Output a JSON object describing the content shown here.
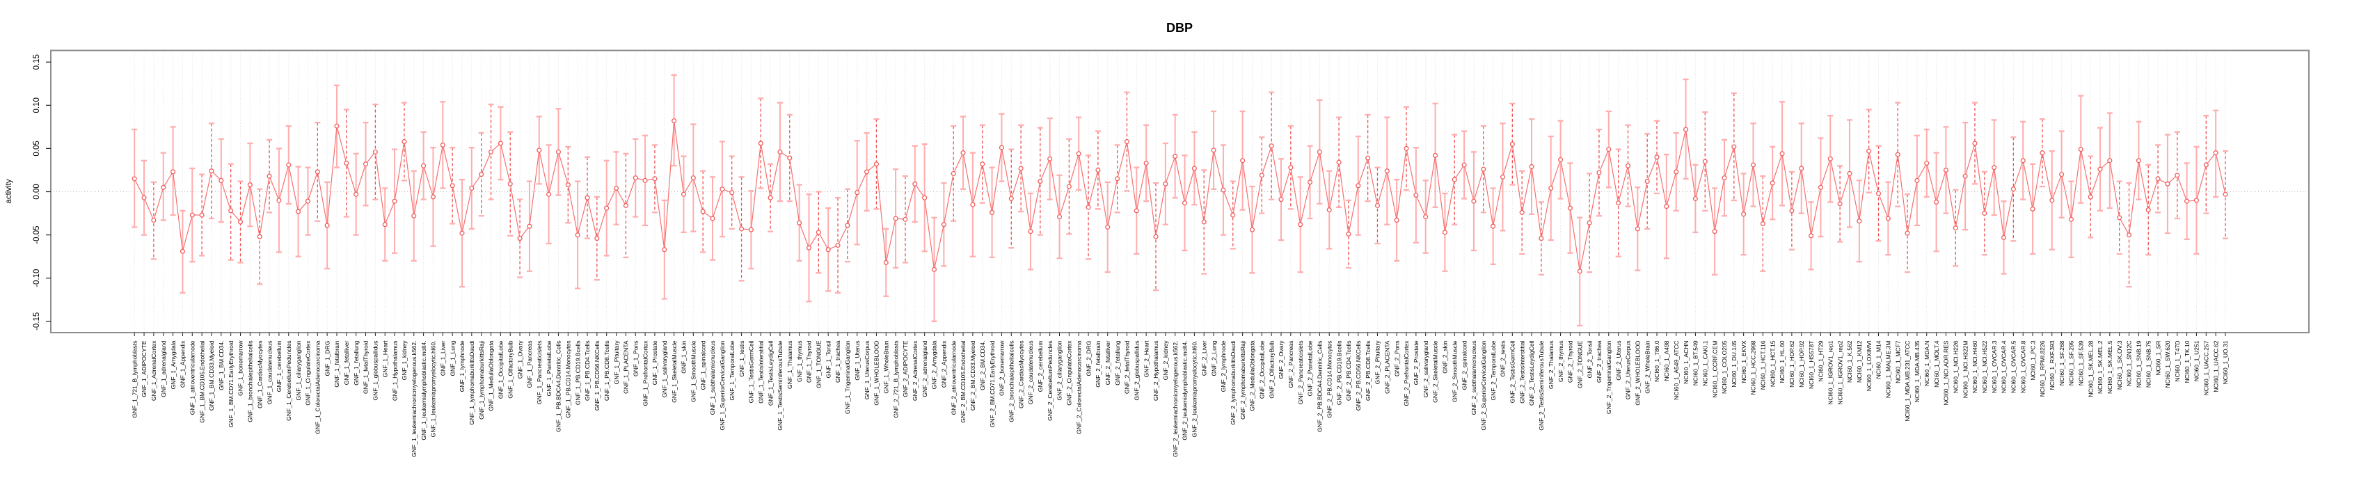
{
  "chart_data": {
    "type": "line",
    "title": "DBP",
    "ylabel": "activity",
    "xlabel": "",
    "ylim": [
      -0.15,
      0.15
    ],
    "yticks": [
      -0.15,
      -0.1,
      -0.05,
      0.0,
      0.05,
      0.1,
      0.15
    ],
    "ytick_labels": [
      "-0.15",
      "-0.10",
      "-0.05",
      "0.00",
      "0.05",
      "0.10",
      "0.15"
    ],
    "legend": "none",
    "grid": "vertical dotted line per category, dotted horizontal line at 0",
    "marker": "open circles connected by line, with confidence-interval error bars",
    "colors": {
      "series_line": "#f57070",
      "point": "#f25c5c",
      "ci_bar_light": "#ffadad",
      "ci_bar_dashed": "#f04f4f",
      "grid_line": "#dedede",
      "zero_line": "#bbbbbb",
      "box_border": "#8c8c8c",
      "tick": "#222222"
    },
    "categories": [
      "GNF_1_721_B_lymphoblasts",
      "GNF_1_ADIPOCYTE",
      "GNF_1_AdrenalCortex",
      "GNF_1_adrenalgland",
      "GNF_1_Amygdala",
      "GNF_1_Appendix",
      "GNF_1_atrioventricularnode",
      "GNF_1_BM.CD105.Endothelial",
      "GNF_1_BM.CD33.Myeloid",
      "GNF_1_BM.CD34.",
      "GNF_1_BM.CD71.EarlyErythroid",
      "GNF_1_bonemarrow",
      "GNF_1_bronchialepithelialcells",
      "GNF_1_CardiacMyocytes",
      "GNF_1_caudatenucleus",
      "GNF_1_cerebellum",
      "GNF_1_CerebellumPeduncles",
      "GNF_1_ciliaryganglion",
      "GNF_1_CingulateCortex",
      "GNF_1_ColorectalAdenocarcinoma",
      "GNF_1_DRG",
      "GNF_1_fetalbrain",
      "GNF_1_fetalliver",
      "GNF_1_fetallung",
      "GNF_1_fetalThyroid",
      "GNF_1_globuspallidus",
      "GNF_1_Heart",
      "GNF_1_Hypothalamus",
      "GNF_1_kidney",
      "GNF_1_leukemiachronicmyelogenous.k562.",
      "GNF_1_leukemialymphoblastic.molt4.",
      "GNF_1_leukemiapromyelocytic.hl60.",
      "GNF_1_Liver",
      "GNF_1_Lung",
      "GNF_1_lymphnode",
      "GNF_1_lymphomaburkittsDaudi",
      "GNF_1_lymphomaburkittsRaji",
      "GNF_1_MedullaOblongata",
      "GNF_1_OccipitalLobe",
      "GNF_1_OlfactoryBulb",
      "GNF_1_Ovary",
      "GNF_1_Pancreas",
      "GNF_1_Pancreaticislets",
      "GNF_1_ParietalLobe",
      "GNF_1_PB.BDCA4.Dentritic_Cells",
      "GNF_1_PB.CD14.Monocytes",
      "GNF_1_PB.CD19.Bcells",
      "GNF_1_PB.CD4.Tcells",
      "GNF_1_PB.CD56.NKCells",
      "GNF_1_PB.CD8.Tcells",
      "GNF_1_Pituitary",
      "GNF_1_PLACENTA",
      "GNF_1_Pons",
      "GNF_1_PrefrontalCortex",
      "GNF_1_Prostate",
      "GNF_1_salivarygland",
      "GNF_1_SkeletalMuscle",
      "GNF_1_skin",
      "GNF_1_SmoothMuscle",
      "GNF_1_spinalcord",
      "GNF_1_subthalamicnucleus",
      "GNF_1_SuperiorCervicalGanglion",
      "GNF_1_TemporalLobe",
      "GNF_1_testis",
      "GNF_1_TestisGermCell",
      "GNF_1_TestisInterstitial",
      "GNF_1_TestisLeydigCell",
      "GNF_1_TestisSeminiferousTubule",
      "GNF_1_Thalamus",
      "GNF_1_thymus",
      "GNF_1_Thyroid",
      "GNF_1_TONGUE",
      "GNF_1_Tonsil",
      "GNF_1_trachea",
      "GNF_1_TrigeminalGanglion",
      "GNF_1_Uterus",
      "GNF_1_UterusCorpus",
      "GNF_1_WHOLEBLOOD",
      "GNF_1_WholeBrain",
      "GNF_2_721_B_lymphoblasts",
      "GNF_2_ADIPOCYTE",
      "GNF_2_AdrenalCortex",
      "GNF_2_adrenalgland",
      "GNF_2_Amygdala",
      "GNF_2_Appendix",
      "GNF_2_atrioventricularnode",
      "GNF_2_BM.CD105.Endothelial",
      "GNF_2_BM.CD33.Myeloid",
      "GNF_2_BM.CD34.",
      "GNF_2_BM.CD71.EarlyErythroid",
      "GNF_2_bonemarrow",
      "GNF_2_bronchialepithelialcells",
      "GNF_2_CardiacMyocytes",
      "GNF_2_caudatenucleus",
      "GNF_2_cerebellum",
      "GNF_2_CerebellumPeduncles",
      "GNF_2_ciliaryganglion",
      "GNF_2_CingulateCortex",
      "GNF_2_ColorectalAdenocarcinoma",
      "GNF_2_DRG",
      "GNF_2_fetalbrain",
      "GNF_2_fetalliver",
      "GNF_2_fetallung",
      "GNF_2_fetalThyroid",
      "GNF_2_globuspallidus",
      "GNF_2_Heart",
      "GNF_2_Hypothalamus",
      "GNF_2_kidney",
      "GNF_2_leukemiachronicmyelogenous.k562.",
      "GNF_2_leukemialymphoblastic.molt4.",
      "GNF_2_leukemiapromyelocytic.hl60.",
      "GNF_2_Liver",
      "GNF_2_Lung",
      "GNF_2_lymphnode",
      "GNF_2_lymphomaburkittsDaudi",
      "GNF_2_lymphomaburkittsRaji",
      "GNF_2_MedullaOblongata",
      "GNF_2_OccipitalLobe",
      "GNF_2_OlfactoryBulb",
      "GNF_2_Ovary",
      "GNF_2_Pancreas",
      "GNF_2_Pancreaticislets",
      "GNF_2_ParietalLobe",
      "GNF_2_PB.BDCA4.Dentritic_Cells",
      "GNF_2_PB.CD14.Monocytes",
      "GNF_2_PB.CD19.Bcells",
      "GNF_2_PB.CD4.Tcells",
      "GNF_2_PB.CD56.NKCells",
      "GNF_2_PB.CD8.Tcells",
      "GNF_2_Pituitary",
      "GNF_2_PLACENTA",
      "GNF_2_Pons",
      "GNF_2_PrefrontalCortex",
      "GNF_2_Prostate",
      "GNF_2_salivarygland",
      "GNF_2_SkeletalMuscle",
      "GNF_2_skin",
      "GNF_2_SmoothMuscle",
      "GNF_2_spinalcord",
      "GNF_2_subthalamicnucleus",
      "GNF_2_SuperiorCervicalGanglion",
      "GNF_2_TemporalLobe",
      "GNF_2_testis",
      "GNF_2_TestisGermCell",
      "GNF_2_TestisInterstitial",
      "GNF_2_TestisLeydigCell",
      "GNF_2_TestisSeminiferousTubule",
      "GNF_2_Thalamus",
      "GNF_2_thymus",
      "GNF_2_Thyroid",
      "GNF_2_TONGUE",
      "GNF_2_Tonsil",
      "GNF_2_trachea",
      "GNF_2_TrigeminalGanglion",
      "GNF_2_Uterus",
      "GNF_2_UterusCorpus",
      "GNF_2_WHOLEBLOOD",
      "GNF_2_WholeBrain",
      "NCI60_1_786.0",
      "NCI60_1_A498",
      "NCI60_1_A549_ATCC",
      "NCI60_1_ACHN",
      "NCI60_1_BT.549",
      "NCI60_1_CAKI.1",
      "NCI60_1_CCRF.CEM",
      "NCI60_1_COLO205",
      "NCI60_1_DU.145",
      "NCI60_1_EKVX",
      "NCI60_1_HCC.2998",
      "NCI60_1_HCT.116",
      "NCI60_1_HCT.15",
      "NCI60_1_HL.60",
      "NCI60_1_HOP.62",
      "NCI60_1_HOP.92",
      "NCI60_1_HS578T",
      "NCI60_1_HT29",
      "NCI60_1_IGROV1_rep1",
      "NCI60_1_IGROV1_rep2",
      "NCI60_1_K.562",
      "NCI60_1_KM12",
      "NCI60_1_LOXIMVI",
      "NCI60_1_M14",
      "NCI60_1_MALME.3M",
      "NCI60_1_MCF7",
      "NCI60_1_MDA.MB.231_ATCC",
      "NCI60_1_MDA.MB.435",
      "NCI60_1_MDA.N",
      "NCI60_1_MOLT.4",
      "NCI60_1_NCI.ADR.RES",
      "NCI60_1_NCI.H226",
      "NCI60_1_NCI.H322M",
      "NCI60_1_NCI.H460",
      "NCI60_1_NCI.H522",
      "NCI60_1_OVCAR.3",
      "NCI60_1_OVCAR.4",
      "NCI60_1_OVCAR.5",
      "NCI60_1_OVCAR.8",
      "NCI60_1_PC.3",
      "NCI60_1_RPMI.8226",
      "NCI60_1_RXF.393",
      "NCI60_1_SF.268",
      "NCI60_1_SF.295",
      "NCI60_1_SF.539",
      "NCI60_1_SK.MEL.28",
      "NCI60_1_SK.MEL.2",
      "NCI60_1_SK.MEL.5",
      "NCI60_1_SK.OV.3",
      "NCI60_1_SN12C",
      "NCI60_1_SNB.19",
      "NCI60_1_SNB.75",
      "NCI60_1_SR",
      "NCI60_1_SW.620",
      "NCI60_1_T47D",
      "NCI60_1_TK.10",
      "NCI60_1_U251",
      "NCI60_1_UACC.257",
      "NCI60_1_UACC.62",
      "NCI60_1_UO.31"
    ],
    "series": [
      {
        "name": "activity",
        "mean": [
          0.015,
          -0.007,
          -0.033,
          0.005,
          0.023,
          -0.069,
          -0.027,
          -0.027,
          0.024,
          0.013,
          -0.022,
          -0.035,
          0.008,
          -0.052,
          0.018,
          -0.01,
          0.031,
          -0.023,
          -0.011,
          0.023,
          -0.039,
          0.076,
          0.033,
          -0.003,
          0.032,
          0.046,
          -0.038,
          -0.011,
          0.058,
          -0.028,
          0.03,
          -0.006,
          0.054,
          0.007,
          -0.048,
          0.004,
          0.02,
          0.046,
          0.056,
          0.009,
          -0.054,
          -0.04,
          0.048,
          -0.003,
          0.046,
          0.008,
          -0.05,
          -0.007,
          -0.054,
          -0.019,
          0.004,
          -0.016,
          0.016,
          0.013,
          0.015,
          -0.067,
          0.082,
          -0.003,
          0.016,
          -0.023,
          -0.031,
          0.003,
          -0.001,
          -0.043,
          -0.044,
          0.056,
          -0.007,
          0.046,
          0.039,
          -0.036,
          -0.065,
          -0.047,
          -0.067,
          -0.062,
          -0.039,
          -0.001,
          0.023,
          0.032,
          -0.082,
          -0.031,
          -0.032,
          0.009,
          -0.007,
          -0.09,
          -0.038,
          0.021,
          0.045,
          -0.015,
          0.032,
          -0.024,
          0.051,
          -0.008,
          0.027,
          -0.046,
          0.012,
          0.038,
          -0.029,
          0.006,
          0.044,
          -0.018,
          0.025,
          -0.041,
          0.015,
          0.058,
          -0.022,
          0.033,
          -0.052,
          0.009,
          0.041,
          -0.013,
          0.027,
          -0.035,
          0.048,
          0.002,
          -0.027,
          0.036,
          -0.044,
          0.019,
          0.053,
          -0.009,
          0.028,
          -0.038,
          0.011,
          0.046,
          -0.021,
          0.034,
          -0.049,
          0.007,
          0.039,
          -0.016,
          0.024,
          -0.033,
          0.05,
          -0.004,
          -0.029,
          0.042,
          -0.047,
          0.014,
          0.031,
          -0.011,
          0.026,
          -0.04,
          0.017,
          0.055,
          -0.024,
          0.029,
          -0.054,
          0.004,
          0.037,
          -0.019,
          -0.092,
          -0.036,
          0.022,
          0.049,
          -0.013,
          0.03,
          -0.043,
          0.012,
          0.04,
          -0.017,
          0.023,
          0.072,
          -0.008,
          0.035,
          -0.046,
          0.016,
          0.052,
          -0.026,
          0.031,
          -0.037,
          0.01,
          0.044,
          -0.022,
          0.027,
          -0.051,
          0.005,
          0.038,
          -0.014,
          0.021,
          -0.034,
          0.047,
          -0.002,
          -0.031,
          0.043,
          -0.048,
          0.013,
          0.033,
          -0.012,
          0.025,
          -0.042,
          0.018,
          0.056,
          -0.025,
          0.028,
          -0.053,
          0.003,
          0.036,
          -0.02,
          0.045,
          -0.01,
          0.02,
          -0.032,
          0.049,
          -0.006,
          0.026,
          0.036,
          -0.03,
          -0.05,
          0.036,
          -0.021,
          0.015,
          0.009,
          0.019,
          -0.011,
          -0.01,
          0.031,
          0.045,
          -0.003
        ],
        "ci_low": [
          -0.041,
          -0.05,
          -0.078,
          -0.033,
          -0.027,
          -0.117,
          -0.081,
          -0.074,
          -0.031,
          -0.035,
          -0.079,
          -0.082,
          -0.04,
          -0.107,
          -0.024,
          -0.07,
          -0.014,
          -0.075,
          -0.05,
          -0.034,
          -0.089,
          0.028,
          -0.029,
          -0.05,
          -0.016,
          -0.009,
          -0.08,
          -0.071,
          0.013,
          -0.08,
          -0.009,
          -0.063,
          0.004,
          -0.037,
          -0.11,
          -0.043,
          -0.028,
          -0.009,
          0.014,
          -0.051,
          -0.099,
          -0.092,
          0.009,
          -0.06,
          -0.004,
          -0.036,
          -0.112,
          -0.054,
          -0.102,
          -0.074,
          -0.038,
          -0.076,
          -0.029,
          -0.039,
          -0.024,
          -0.124,
          0.03,
          -0.047,
          -0.046,
          -0.07,
          -0.079,
          -0.052,
          -0.043,
          -0.103,
          -0.089,
          0.004,
          -0.046,
          -0.011,
          -0.011,
          -0.08,
          -0.127,
          -0.094,
          -0.115,
          -0.117,
          -0.081,
          -0.061,
          -0.022,
          -0.02,
          -0.121,
          -0.088,
          -0.082,
          -0.035,
          -0.069,
          -0.15,
          -0.086,
          -0.034,
          0.003,
          -0.075,
          -0.013,
          -0.076,
          0.012,
          -0.065,
          -0.023,
          -0.09,
          -0.05,
          -0.009,
          -0.077,
          -0.049,
          0.002,
          -0.078,
          -0.02,
          -0.093,
          -0.024,
          0.001,
          -0.072,
          -0.011,
          -0.114,
          -0.038,
          -0.007,
          -0.068,
          -0.015,
          -0.095,
          0.003,
          -0.05,
          -0.066,
          -0.021,
          -0.094,
          -0.025,
          -0.009,
          -0.056,
          -0.02,
          -0.093,
          -0.031,
          -0.014,
          -0.066,
          -0.018,
          -0.088,
          -0.05,
          -0.011,
          -0.06,
          -0.038,
          -0.08,
          0.002,
          -0.059,
          -0.071,
          -0.018,
          -0.092,
          -0.038,
          -0.008,
          -0.068,
          -0.024,
          -0.084,
          -0.045,
          0.008,
          -0.072,
          -0.026,
          -0.096,
          -0.056,
          -0.008,
          -0.071,
          -0.155,
          -0.093,
          -0.028,
          0.005,
          -0.075,
          -0.017,
          -0.091,
          -0.043,
          -0.002,
          -0.077,
          -0.022,
          0.015,
          -0.047,
          -0.022,
          -0.096,
          -0.028,
          -0.01,
          -0.073,
          -0.017,
          -0.092,
          -0.032,
          -0.016,
          -0.067,
          -0.025,
          -0.09,
          -0.052,
          -0.012,
          -0.058,
          -0.041,
          -0.081,
          -0.001,
          -0.057,
          -0.073,
          -0.017,
          -0.093,
          -0.039,
          -0.006,
          -0.069,
          -0.025,
          -0.086,
          -0.044,
          0.009,
          -0.073,
          -0.027,
          -0.095,
          -0.057,
          -0.009,
          -0.072,
          0.006,
          -0.067,
          -0.03,
          -0.076,
          -0.013,
          -0.053,
          -0.022,
          -0.019,
          -0.072,
          -0.11,
          -0.009,
          -0.073,
          -0.024,
          -0.048,
          -0.031,
          -0.055,
          -0.072,
          -0.025,
          -0.006,
          -0.054
        ],
        "ci_high": [
          0.072,
          0.036,
          0.011,
          0.045,
          0.075,
          -0.022,
          0.027,
          0.02,
          0.079,
          0.061,
          0.032,
          0.012,
          0.056,
          0.003,
          0.06,
          0.05,
          0.076,
          0.029,
          0.028,
          0.08,
          0.011,
          0.123,
          0.095,
          0.044,
          0.08,
          0.101,
          0.004,
          0.049,
          0.103,
          0.024,
          0.069,
          0.051,
          0.104,
          0.051,
          0.014,
          0.051,
          0.068,
          0.101,
          0.098,
          0.069,
          -0.009,
          0.012,
          0.087,
          0.054,
          0.096,
          0.052,
          0.012,
          0.04,
          -0.006,
          0.036,
          0.046,
          0.044,
          0.061,
          0.065,
          0.054,
          -0.01,
          0.135,
          0.041,
          0.078,
          0.024,
          0.017,
          0.058,
          0.041,
          0.017,
          0.001,
          0.108,
          0.032,
          0.103,
          0.089,
          0.008,
          -0.003,
          0.0,
          -0.019,
          -0.007,
          0.003,
          0.059,
          0.068,
          0.084,
          -0.043,
          0.026,
          0.018,
          0.053,
          0.055,
          -0.03,
          0.01,
          0.076,
          0.087,
          0.045,
          0.077,
          0.028,
          0.09,
          0.049,
          0.077,
          -0.002,
          0.074,
          0.085,
          0.019,
          0.061,
          0.086,
          0.042,
          0.07,
          0.011,
          0.054,
          0.115,
          0.028,
          0.077,
          0.01,
          0.056,
          0.089,
          0.042,
          0.069,
          0.025,
          0.093,
          0.054,
          0.012,
          0.093,
          0.006,
          0.063,
          0.115,
          0.038,
          0.076,
          0.017,
          0.053,
          0.106,
          0.024,
          0.086,
          -0.01,
          0.064,
          0.089,
          0.028,
          0.086,
          0.014,
          0.098,
          0.051,
          0.013,
          0.102,
          -0.002,
          0.066,
          0.07,
          0.046,
          0.076,
          0.004,
          0.079,
          0.102,
          0.024,
          0.084,
          -0.012,
          0.064,
          0.082,
          0.033,
          -0.03,
          0.021,
          0.072,
          0.093,
          0.049,
          0.077,
          0.005,
          0.067,
          0.082,
          0.043,
          0.068,
          0.13,
          0.031,
          0.092,
          0.004,
          0.06,
          0.114,
          0.021,
          0.079,
          0.018,
          0.052,
          0.104,
          0.023,
          0.079,
          -0.012,
          0.062,
          0.088,
          0.03,
          0.083,
          0.013,
          0.095,
          0.053,
          0.011,
          0.103,
          -0.003,
          0.065,
          0.072,
          0.045,
          0.075,
          0.002,
          0.08,
          0.103,
          0.023,
          0.083,
          -0.011,
          0.063,
          0.081,
          0.032,
          0.084,
          0.047,
          0.07,
          0.012,
          0.111,
          0.041,
          0.074,
          0.091,
          0.012,
          0.01,
          0.081,
          0.031,
          0.054,
          0.066,
          0.069,
          0.033,
          0.052,
          0.088,
          0.094,
          0.047
        ]
      }
    ]
  }
}
